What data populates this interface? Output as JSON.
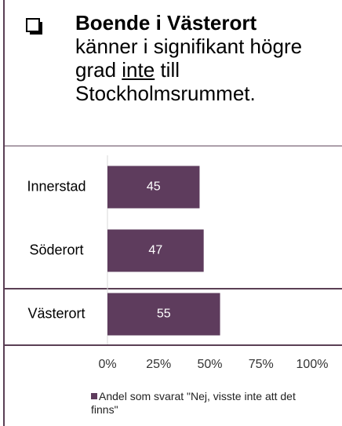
{
  "title": "Boende i Västerort",
  "subtitle": [
    "känner i signifikant högre grad",
    "inte",
    "till Stockholmsrummet."
  ],
  "chart_data": {
    "type": "bar",
    "orientation": "horizontal",
    "categories": [
      "Innerstad",
      "Söderort",
      "Västerort"
    ],
    "series": [
      {
        "name": "Andel som svarat \"Nej, visste inte att det finns\"",
        "color": "#5e3c5d",
        "values": [
          45,
          47,
          55
        ]
      }
    ],
    "xlim": [
      0,
      100
    ],
    "xticks": [
      {
        "value": 0,
        "label": "0%"
      },
      {
        "value": 25,
        "label": "25%"
      },
      {
        "value": 50,
        "label": "50%"
      },
      {
        "value": 75,
        "label": "75%"
      },
      {
        "value": 100,
        "label": "100%"
      }
    ],
    "legend": "bottom"
  }
}
